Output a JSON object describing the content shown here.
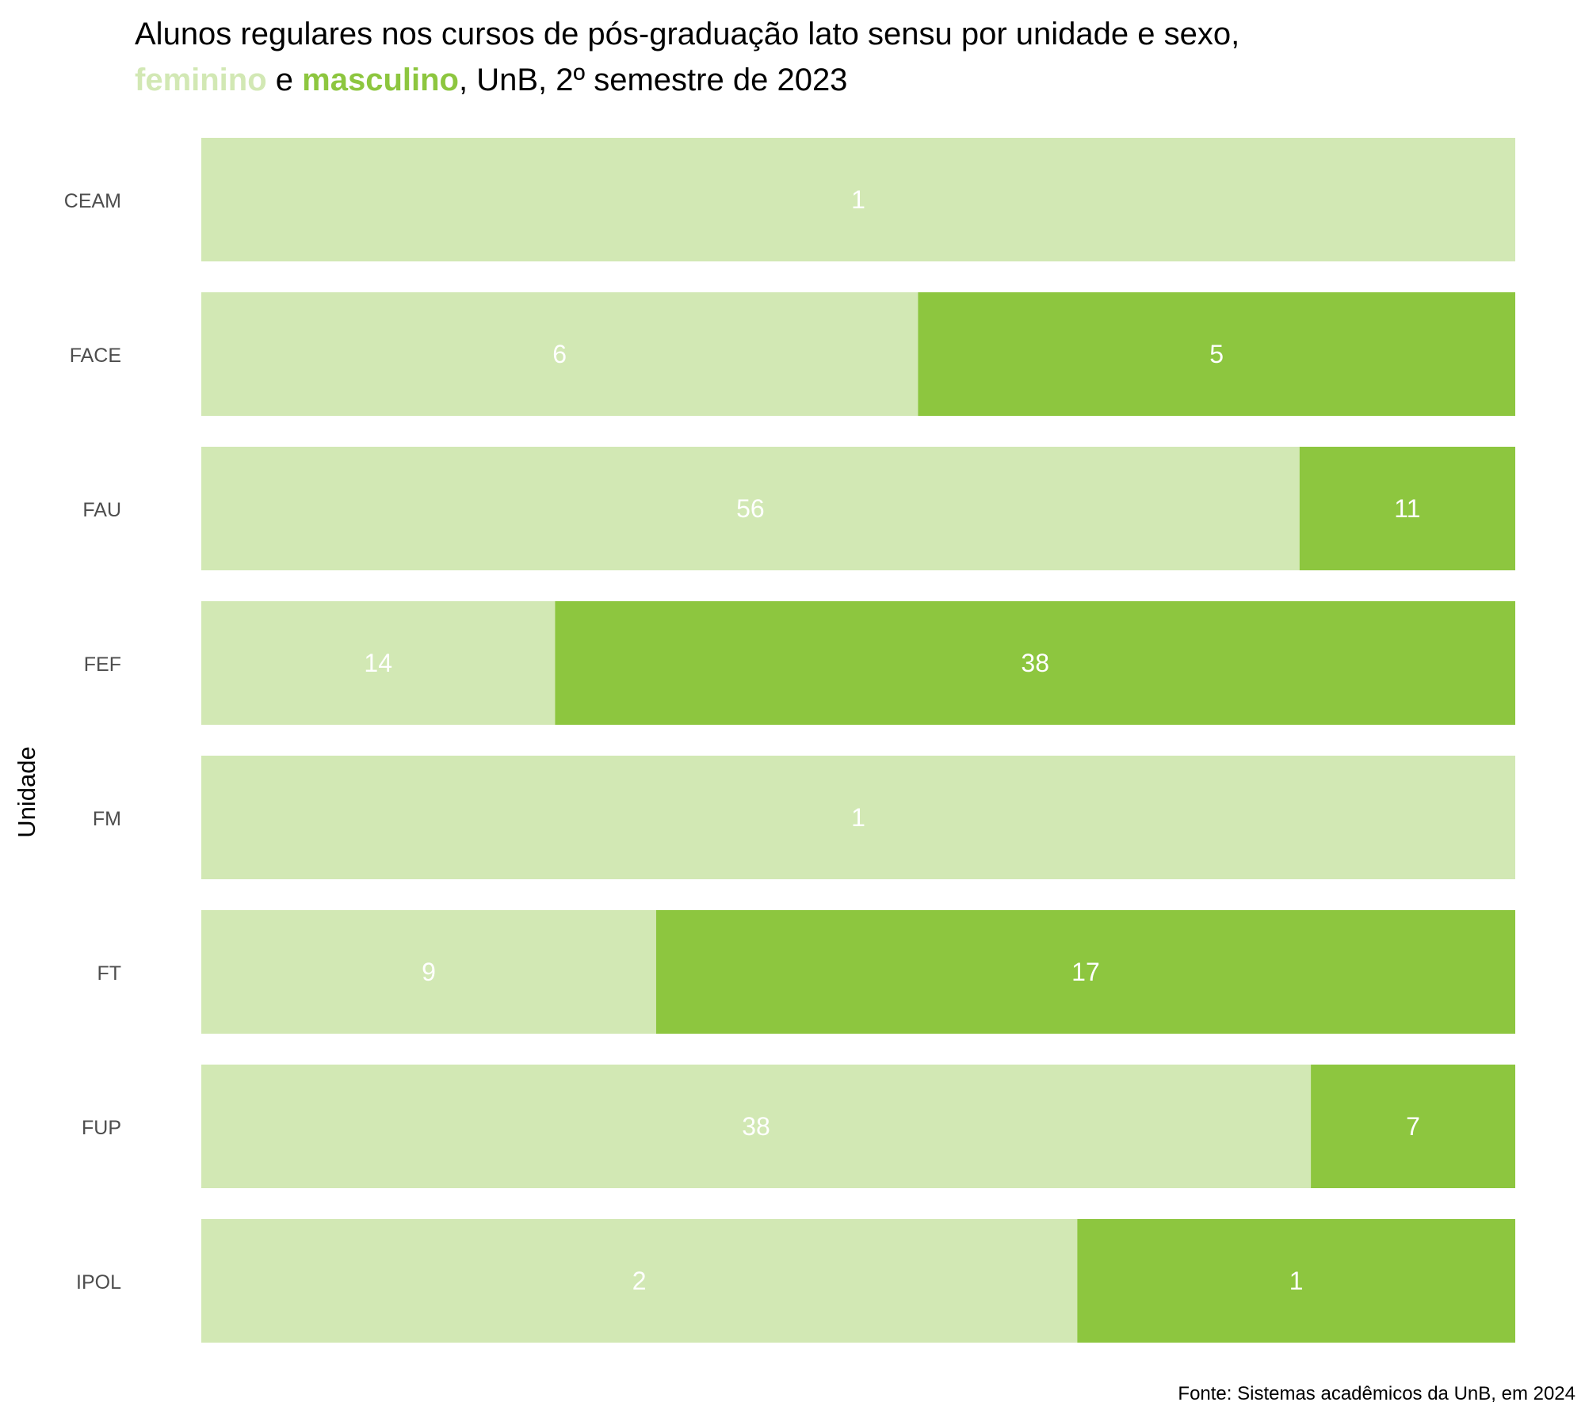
{
  "title": {
    "line1": "Alunos regulares nos cursos de pós-graduação lato sensu por unidade e sexo,",
    "feminino": "feminino",
    "connector": " e ",
    "masculino": "masculino",
    "suffix": ", UnB, 2º semestre de 2023"
  },
  "source": "Fonte: Sistemas acadêmicos da UnB, em 2024",
  "colors": {
    "feminino": "#d2e8b4",
    "masculino": "#8dc63f",
    "bar_label": "#ffffff",
    "tick_label": "#4d4d4d",
    "axis_title": "#000000"
  },
  "chart_data": {
    "type": "bar",
    "orientation": "horizontal",
    "stacked": "percent",
    "ylabel": "Unidade",
    "xlabel": "",
    "grid": false,
    "legend": "none",
    "categories": [
      "CEAM",
      "FACE",
      "FAU",
      "FEF",
      "FM",
      "FT",
      "FUP",
      "IPOL"
    ],
    "series": [
      {
        "name": "feminino",
        "values": [
          1,
          6,
          56,
          14,
          1,
          9,
          38,
          2
        ]
      },
      {
        "name": "masculino",
        "values": [
          0,
          5,
          11,
          38,
          0,
          17,
          7,
          1
        ]
      }
    ]
  }
}
